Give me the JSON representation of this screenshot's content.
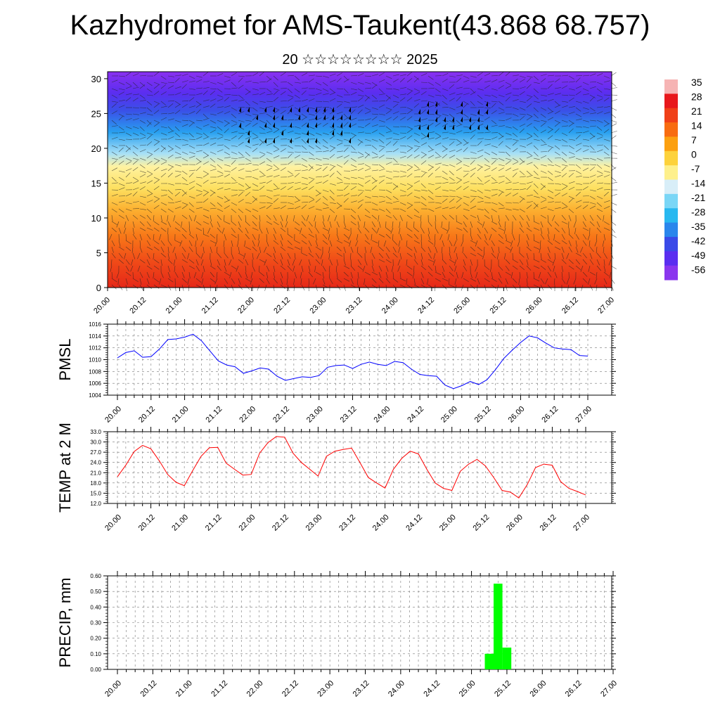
{
  "header": {
    "title": "Kazhydromet for AMS-Taukent(43.868 68.757)",
    "subtitle": "20 ☆☆☆☆☆☆☆☆ 2025"
  },
  "chart_data": [
    {
      "type": "heatmap",
      "name": "cross-section",
      "ylim": [
        0,
        31
      ],
      "yticks": [
        0,
        5,
        10,
        15,
        20,
        25,
        30
      ],
      "xticks": [
        "20.00",
        "20.12",
        "21.00",
        "21.12",
        "22.00",
        "22.12",
        "23.00",
        "23.12",
        "24.00",
        "24.12",
        "25.00",
        "25.12",
        "26.00",
        "26.12",
        "27.00"
      ],
      "colorbar": {
        "labels": [
          "35",
          "28",
          "21",
          "14",
          "7",
          "0",
          "-7",
          "-14",
          "-21",
          "-28",
          "-35",
          "-42",
          "-49",
          "-56"
        ],
        "colors": [
          "#f6b4b4",
          "#e8181c",
          "#f04018",
          "#f86c10",
          "#fca010",
          "#fdd23c",
          "#fef08c",
          "#d8eef8",
          "#7ad6f6",
          "#28b8f0",
          "#2a86ec",
          "#3a4ae8",
          "#5a2ef0",
          "#8a36ee"
        ]
      },
      "overlay": "wind barbs"
    },
    {
      "type": "line",
      "name": "pmsl",
      "ylabel": "PMSL",
      "ylim": [
        1004,
        1016
      ],
      "yticks": [
        "1004",
        "1006",
        "1008",
        "1010",
        "1012",
        "1014",
        "1016"
      ],
      "xticks": [
        "20.00",
        "20.12",
        "21.00",
        "21.12",
        "22.00",
        "22.12",
        "23.00",
        "23.12",
        "24.00",
        "24.12",
        "25.00",
        "25.12",
        "26.00",
        "26.12",
        "27.00"
      ],
      "color": "#0000ff",
      "values": [
        1010.3,
        1011.2,
        1011.5,
        1010.4,
        1010.5,
        1011.8,
        1013.4,
        1013.5,
        1013.8,
        1014.3,
        1013.2,
        1011.5,
        1009.8,
        1009.1,
        1008.8,
        1007.7,
        1008.1,
        1008.6,
        1008.4,
        1007.2,
        1006.5,
        1006.8,
        1007.1,
        1007.0,
        1007.3,
        1008.7,
        1009.0,
        1009.1,
        1008.5,
        1009.2,
        1009.6,
        1009.2,
        1009.0,
        1009.7,
        1009.5,
        1008.4,
        1007.5,
        1007.3,
        1007.2,
        1005.7,
        1005.1,
        1005.6,
        1006.3,
        1005.8,
        1006.6,
        1008.3,
        1010.2,
        1011.6,
        1012.9,
        1014.0,
        1013.7,
        1012.8,
        1012.0,
        1011.8,
        1011.7,
        1010.7,
        1010.6
      ]
    },
    {
      "type": "line",
      "name": "temp",
      "ylabel": "TEMP at 2 M",
      "ylim": [
        12,
        33
      ],
      "yticks": [
        "12.0",
        "15.0",
        "18.0",
        "21.0",
        "24.0",
        "27.0",
        "30.0",
        "33.0"
      ],
      "xticks": [
        "20.00",
        "20.12",
        "21.00",
        "21.12",
        "22.00",
        "22.12",
        "23.00",
        "23.12",
        "24.00",
        "24.12",
        "25.00",
        "25.12",
        "26.00",
        "26.12",
        "27.00"
      ],
      "color": "#ff0000",
      "values": [
        19.8,
        23.2,
        27.2,
        29.0,
        28.0,
        24.5,
        20.5,
        18.2,
        17.2,
        21.6,
        25.8,
        28.3,
        28.4,
        23.8,
        22.0,
        20.3,
        20.5,
        26.7,
        29.8,
        31.6,
        31.4,
        26.7,
        24.0,
        22.0,
        20.0,
        25.8,
        27.3,
        27.8,
        28.2,
        24.0,
        19.6,
        18.0,
        16.5,
        22.0,
        25.2,
        27.3,
        26.5,
        22.0,
        18.0,
        16.4,
        15.8,
        21.4,
        23.5,
        24.9,
        23.0,
        19.6,
        15.8,
        15.3,
        13.6,
        17.5,
        22.5,
        23.5,
        23.2,
        18.4,
        16.4,
        15.5,
        14.5
      ]
    },
    {
      "type": "bar",
      "name": "precip",
      "ylabel": "PRECIP, mm",
      "ylim": [
        0,
        0.6
      ],
      "yticks": [
        "0.00",
        "0.10",
        "0.20",
        "0.30",
        "0.40",
        "0.50",
        "0.60"
      ],
      "xticks": [
        "20.00",
        "20.12",
        "21.00",
        "21.12",
        "22.00",
        "22.12",
        "23.00",
        "23.12",
        "24.00",
        "24.12",
        "25.00",
        "25.12",
        "26.00",
        "26.12",
        "27.00"
      ],
      "color": "#00ff00",
      "bars": [
        {
          "time": "25.06",
          "value": 0.1
        },
        {
          "time": "25.09",
          "value": 0.55
        },
        {
          "time": "25.12",
          "value": 0.14
        }
      ]
    }
  ]
}
